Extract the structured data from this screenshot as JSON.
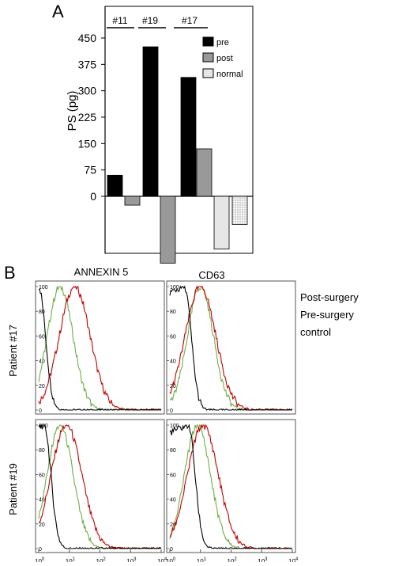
{
  "panel_a": {
    "label": "A",
    "ylabel": "PS (pg)",
    "yticks": [
      "450",
      "375",
      "300",
      "225",
      "150",
      "75",
      "0"
    ],
    "group_labels": [
      "#11",
      "#19",
      "#17"
    ],
    "legend": [
      {
        "label": "pre",
        "color": "#000000"
      },
      {
        "label": "post",
        "color": "#999999"
      },
      {
        "label": "normal",
        "color": "#e6e6e6"
      }
    ]
  },
  "panel_b": {
    "label": "B",
    "col_titles": [
      "ANNEXIN 5",
      "CD63"
    ],
    "row_titles": [
      "Patient #17",
      "Patient #19"
    ],
    "yticks": [
      "100",
      "80",
      "60",
      "40",
      "20",
      "0"
    ],
    "xtick_mantissa": [
      "10",
      "10",
      "10",
      "10",
      "10"
    ],
    "xtick_exponent": [
      "0",
      "1",
      "2",
      "3",
      "4"
    ],
    "legend": [
      {
        "label": "Post-surgery",
        "color": "#92d050"
      },
      {
        "label": "Pre-surgery",
        "color": "#c00000"
      },
      {
        "label": "control",
        "color": "#000000"
      }
    ]
  },
  "chart_data": [
    {
      "type": "bar",
      "ylabel": "PS (pg)",
      "ylim": [
        -200,
        470
      ],
      "categories": [
        "#11",
        "#19",
        "#17"
      ],
      "series": [
        {
          "name": "pre",
          "values": [
            60,
            425,
            338
          ]
        },
        {
          "name": "post",
          "values": [
            -25,
            -190,
            135
          ]
        },
        {
          "name": "normal",
          "values": [
            null,
            null,
            -150
          ]
        }
      ],
      "extra_bar": {
        "group": "#17",
        "value": -80,
        "style": "dotted"
      },
      "legend_position": "top-right",
      "grid": false
    },
    {
      "type": "line",
      "x_scale": "log",
      "xlim": [
        1,
        10000
      ],
      "ylim": [
        0,
        100
      ],
      "columns": [
        "ANNEXIN 5",
        "CD63"
      ],
      "rows": [
        "Patient #17",
        "Patient #19"
      ],
      "series": [
        {
          "name": "Post-surgery",
          "peaks": {
            "Patient #17|ANNEXIN 5": 5,
            "Patient #17|CD63": 10,
            "Patient #19|ANNEXIN 5": 5,
            "Patient #19|CD63": 8
          }
        },
        {
          "name": "Pre-surgery",
          "peaks": {
            "Patient #17|ANNEXIN 5": 15,
            "Patient #17|CD63": 10,
            "Patient #19|ANNEXIN 5": 8,
            "Patient #19|CD63": 12
          }
        },
        {
          "name": "control",
          "peaks": {
            "Patient #17|ANNEXIN 5": 1,
            "Patient #17|CD63": 3,
            "Patient #19|ANNEXIN 5": 1.5,
            "Patient #19|CD63": 4
          }
        }
      ],
      "legend_position": "right"
    }
  ]
}
